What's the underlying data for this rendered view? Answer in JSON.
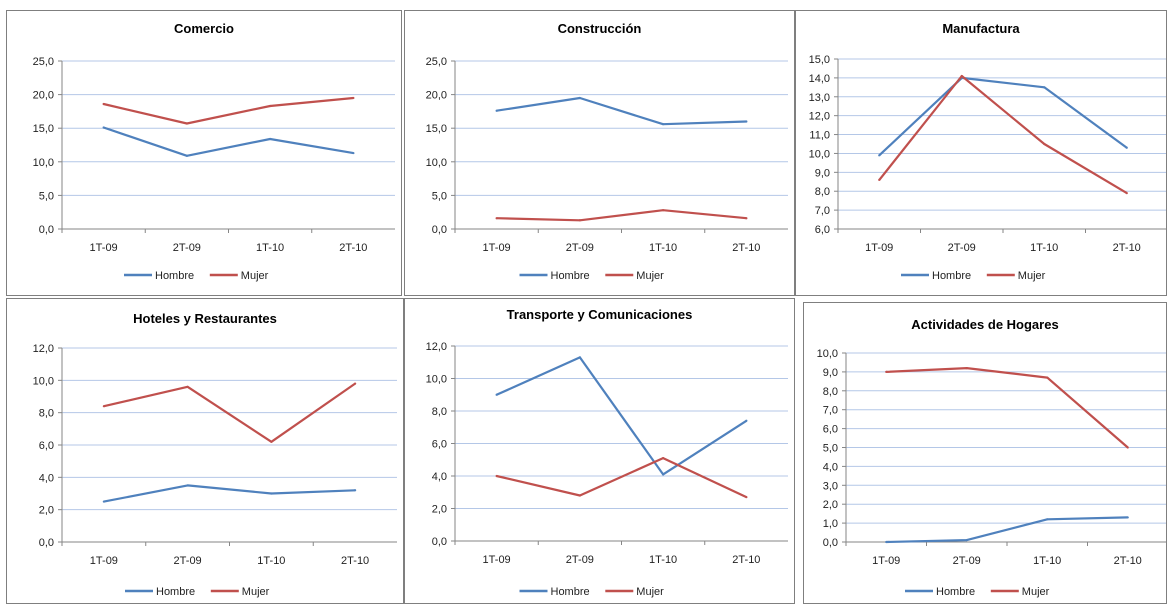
{
  "colors": {
    "hombre": "#4F81BD",
    "mujer": "#C0504D",
    "grid": "#B4C7E7",
    "axis": "#868686"
  },
  "legend_position": "bottom",
  "chart_data": [
    {
      "type": "line",
      "title": "Comercio",
      "categories": [
        "1T-09",
        "2T-09",
        "1T-10",
        "2T-10"
      ],
      "ylim": [
        0,
        25
      ],
      "ystep": 5,
      "grid": true,
      "series": [
        {
          "name": "Hombre",
          "values": [
            15.1,
            10.9,
            13.4,
            11.3
          ]
        },
        {
          "name": "Mujer",
          "values": [
            18.6,
            15.7,
            18.3,
            19.5
          ]
        }
      ]
    },
    {
      "type": "line",
      "title": "Construcción",
      "categories": [
        "1T-09",
        "2T-09",
        "1T-10",
        "2T-10"
      ],
      "ylim": [
        0,
        25
      ],
      "ystep": 5,
      "grid": true,
      "series": [
        {
          "name": "Hombre",
          "values": [
            17.6,
            19.5,
            15.6,
            16.0
          ]
        },
        {
          "name": "Mujer",
          "values": [
            1.6,
            1.3,
            2.8,
            1.6
          ]
        }
      ]
    },
    {
      "type": "line",
      "title": "Manufactura",
      "categories": [
        "1T-09",
        "2T-09",
        "1T-10",
        "2T-10"
      ],
      "ylim": [
        6,
        15
      ],
      "ystep": 1,
      "grid": true,
      "series": [
        {
          "name": "Hombre",
          "values": [
            9.9,
            14.0,
            13.5,
            10.3
          ]
        },
        {
          "name": "Mujer",
          "values": [
            8.6,
            14.1,
            10.5,
            7.9
          ]
        }
      ]
    },
    {
      "type": "line",
      "title": "Hoteles y Restaurantes",
      "categories": [
        "1T-09",
        "2T-09",
        "1T-10",
        "2T-10"
      ],
      "ylim": [
        0,
        12
      ],
      "ystep": 2,
      "grid": true,
      "series": [
        {
          "name": "Hombre",
          "values": [
            2.5,
            3.5,
            3.0,
            3.2
          ]
        },
        {
          "name": "Mujer",
          "values": [
            8.4,
            9.6,
            6.2,
            9.8
          ]
        }
      ]
    },
    {
      "type": "line",
      "title": "Transporte y Comunicaciones",
      "categories": [
        "1T-09",
        "2T-09",
        "1T-10",
        "2T-10"
      ],
      "ylim": [
        0,
        12
      ],
      "ystep": 2,
      "grid": true,
      "series": [
        {
          "name": "Hombre",
          "values": [
            9.0,
            11.3,
            4.1,
            7.4
          ]
        },
        {
          "name": "Mujer",
          "values": [
            4.0,
            2.8,
            5.1,
            2.7
          ]
        }
      ]
    },
    {
      "type": "line",
      "title": "Actividades de Hogares",
      "categories": [
        "1T-09",
        "2T-09",
        "1T-10",
        "2T-10"
      ],
      "ylim": [
        0,
        10
      ],
      "ystep": 1,
      "grid": true,
      "series": [
        {
          "name": "Hombre",
          "values": [
            0.0,
            0.1,
            1.2,
            1.3
          ]
        },
        {
          "name": "Mujer",
          "values": [
            9.0,
            9.2,
            8.7,
            5.0
          ]
        }
      ]
    }
  ]
}
